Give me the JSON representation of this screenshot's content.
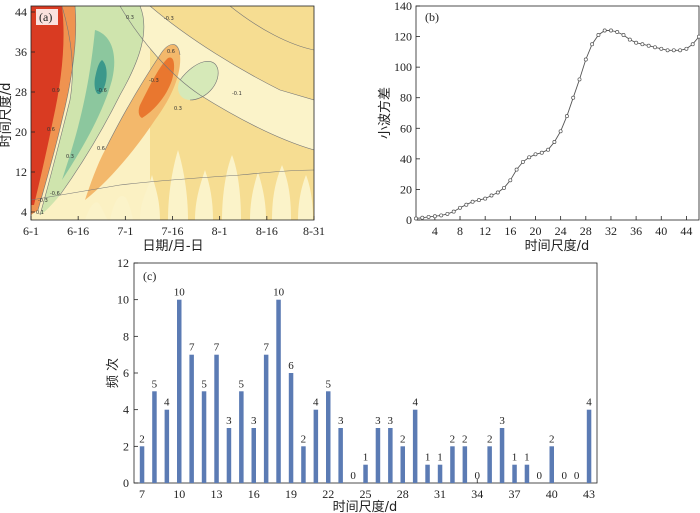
{
  "chart_data": [
    {
      "panel": "(a)",
      "type": "heatmap",
      "xlabel": "日期/月-日",
      "ylabel": "时间尺度/d",
      "x_ticks": [
        "6-1",
        "6-16",
        "7-1",
        "7-16",
        "8-1",
        "8-16",
        "8-31"
      ],
      "y_ticks": [
        "4",
        "12",
        "20",
        "28",
        "36",
        "44"
      ],
      "contour_labels": [
        "0.1",
        "-0.3",
        "-0.6",
        "0.3",
        "0.6",
        "0.9",
        "0.3",
        "-0.3",
        "0.6",
        "-0.1",
        "-0.3",
        "-0.6",
        "0.6",
        "0.3"
      ],
      "colors": {
        "strong_positive": "#d93b22",
        "positive": "#ee8a45",
        "weak_positive": "#f5dc8e",
        "pale": "#fbf3c9",
        "weak_negative": "#c4dfa6",
        "negative": "#78bd98",
        "strong_negative": "#3b988b"
      }
    },
    {
      "panel": "(b)",
      "type": "line",
      "xlabel": "时间尺度/d",
      "ylabel": "小波方差",
      "xlim": [
        1,
        46
      ],
      "ylim": [
        0,
        140
      ],
      "x_ticks": [
        4,
        8,
        12,
        16,
        20,
        24,
        28,
        32,
        36,
        40,
        44
      ],
      "y_ticks": [
        0,
        20,
        40,
        60,
        80,
        100,
        120,
        140
      ],
      "x": [
        1,
        2,
        3,
        4,
        5,
        6,
        7,
        8,
        9,
        10,
        11,
        12,
        13,
        14,
        15,
        16,
        17,
        18,
        19,
        20,
        21,
        22,
        23,
        24,
        25,
        26,
        27,
        28,
        29,
        30,
        31,
        32,
        33,
        34,
        35,
        36,
        37,
        38,
        39,
        40,
        41,
        42,
        43,
        44,
        45,
        46
      ],
      "y": [
        1,
        1.5,
        2,
        2.5,
        3,
        4,
        5.5,
        8,
        10,
        12,
        13,
        14,
        16,
        18,
        21,
        26,
        33,
        38,
        41,
        43,
        44,
        46,
        51,
        58,
        68,
        80,
        92,
        105,
        115,
        121,
        124,
        124,
        123,
        121,
        118,
        116,
        115,
        114,
        113,
        112,
        111,
        111,
        111,
        112,
        115,
        120
      ],
      "color": "#555555"
    },
    {
      "panel": "(c)",
      "type": "bar",
      "xlabel": "时间尺度/d",
      "ylabel": "频  次",
      "ylim": [
        0,
        12
      ],
      "y_ticks": [
        0,
        2,
        4,
        6,
        8,
        10,
        12
      ],
      "x_ticks": [
        7,
        10,
        13,
        16,
        19,
        22,
        25,
        28,
        31,
        34,
        37,
        40,
        43
      ],
      "categories": [
        7,
        8,
        9,
        10,
        11,
        12,
        13,
        14,
        15,
        16,
        17,
        18,
        19,
        20,
        21,
        22,
        23,
        24,
        25,
        26,
        27,
        28,
        29,
        30,
        31,
        32,
        33,
        34,
        35,
        36,
        37,
        38,
        39,
        40,
        41,
        42,
        43
      ],
      "values": [
        2,
        5,
        4,
        10,
        7,
        5,
        7,
        3,
        5,
        3,
        7,
        10,
        6,
        2,
        4,
        5,
        3,
        0,
        1,
        3,
        3,
        2,
        4,
        1,
        1,
        2,
        2,
        0,
        2,
        3,
        1,
        1,
        0,
        2,
        0,
        0,
        4
      ],
      "color": "#5b7bb4"
    }
  ]
}
